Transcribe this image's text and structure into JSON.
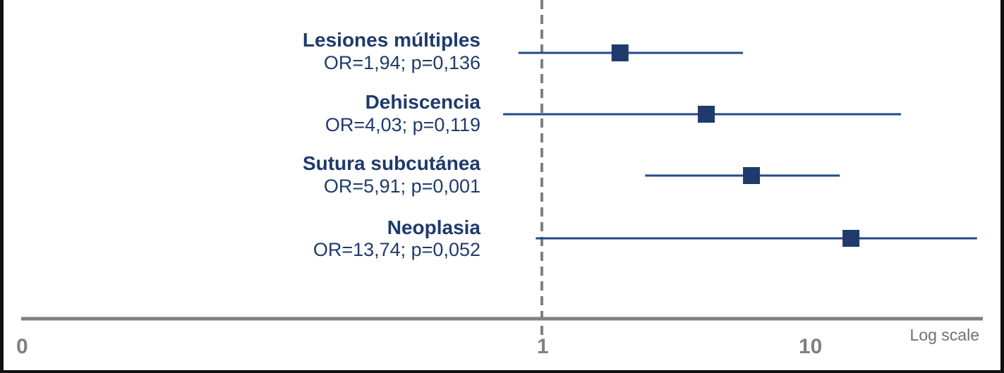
{
  "chart_data": {
    "type": "forest",
    "x_scale": "log",
    "scale_note": "Log scale",
    "x_ticks": [
      "0",
      "1",
      "10"
    ],
    "reference_line": 1,
    "colors": {
      "marker": "#1f3a6b",
      "ci_line": "#24488a",
      "axis": "#808080",
      "reference": "#808080"
    },
    "rows": [
      {
        "name": "Lesiones múltiples",
        "stat": "OR=1,94; p=0,136",
        "or": 1.94,
        "ci": [
          0.82,
          5.5
        ]
      },
      {
        "name": "Dehiscencia",
        "stat": "OR=4,03; p=0,119",
        "or": 4.03,
        "ci": [
          0.72,
          21.0
        ]
      },
      {
        "name": "Sutura subcutánea",
        "stat": "OR=5,91; p=0,001",
        "or": 5.91,
        "ci": [
          2.4,
          12.5
        ]
      },
      {
        "name": "Neoplasia",
        "stat": "OR=13,74; p=0,052",
        "or": 13.74,
        "ci": [
          0.95,
          40.0
        ]
      }
    ]
  }
}
